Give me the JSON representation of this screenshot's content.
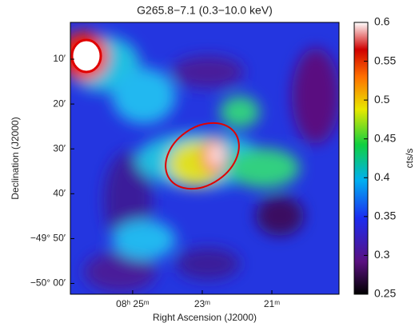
{
  "chart_data": {
    "type": "image",
    "title": "G265.8−7.1 (0.3−10.0 keV)",
    "xlabel": "Right Ascension (J2000)",
    "ylabel": "Declination (J2000)",
    "xlim": [
      26.79,
      19.07
    ],
    "xticks": [
      {
        "value": 25,
        "label": "08ʰ 25ᵐ"
      },
      {
        "value": 23,
        "label": "23ᵐ"
      },
      {
        "value": 21,
        "label": "21ᵐ"
      }
    ],
    "ylim": [
      -50.04,
      -49.03
    ],
    "yticks": [
      {
        "value": -49.1667,
        "label": "10′"
      },
      {
        "value": -49.3333,
        "label": "20′"
      },
      {
        "value": -49.5,
        "label": "30′"
      },
      {
        "value": -49.6667,
        "label": "40′"
      },
      {
        "value": -49.8333,
        "label": "−49° 50′"
      },
      {
        "value": -50.0,
        "label": "−50° 00′"
      }
    ],
    "colorbar_label": "cts/s",
    "clim": [
      0.25,
      0.6
    ],
    "cticks": [
      0.6,
      0.55,
      0.5,
      0.45,
      0.4,
      0.35,
      0.3,
      0.25
    ]
  }
}
